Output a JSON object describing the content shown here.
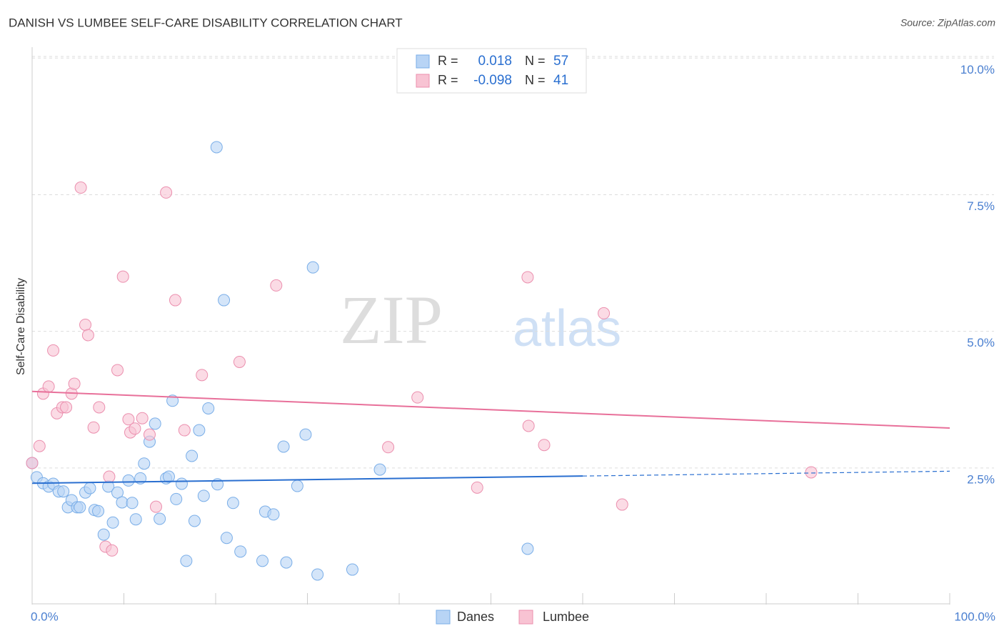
{
  "chart_data": {
    "type": "scatter",
    "title": "DANISH VS LUMBEE SELF-CARE DISABILITY CORRELATION CHART",
    "source": "Source: ZipAtlas.com",
    "y_label": "Self-Care Disability",
    "watermark": [
      "ZIP",
      "atlas"
    ],
    "xlim": [
      0,
      100
    ],
    "ylim": [
      0,
      10.2
    ],
    "xticks": [
      0,
      10,
      20,
      30,
      40,
      50,
      60,
      70,
      80,
      90,
      100
    ],
    "xtick_labels": [
      {
        "value": 0,
        "label": "0.0%"
      },
      {
        "value": 100,
        "label": "100.0%"
      }
    ],
    "yticks": [
      {
        "value": 2.5,
        "label": "2.5%"
      },
      {
        "value": 5,
        "label": "5.0%"
      },
      {
        "value": 7.5,
        "label": "7.5%"
      },
      {
        "value": 10,
        "label": "10.0%"
      }
    ],
    "grid": true,
    "legend_stats": [
      {
        "r_label": "R =",
        "r": "0.018",
        "n_label": "N =",
        "n": "57"
      },
      {
        "r_label": "R =",
        "r": "-0.098",
        "n_label": "N =",
        "n": "41"
      }
    ],
    "series": [
      {
        "name": "Danes",
        "color": "#7aaee8",
        "fill": "#b8d4f5",
        "line_color": "#2a6fd0",
        "trend": [
          2.22,
          2.44
        ],
        "trend_solid_to": 60,
        "x": [
          0,
          0.5,
          1.2,
          1.8,
          2.3,
          2.9,
          3.4,
          3.9,
          4.3,
          4.9,
          5.2,
          5.8,
          6.3,
          6.8,
          7.2,
          7.8,
          8.3,
          8.8,
          9.3,
          9.8,
          10.5,
          10.9,
          11.3,
          11.8,
          12.2,
          12.8,
          13.4,
          13.9,
          14.6,
          14.9,
          15.3,
          15.7,
          16.3,
          16.8,
          17.4,
          17.7,
          18.2,
          18.7,
          19.2,
          20.1,
          20.2,
          20.9,
          21.2,
          21.9,
          22.7,
          25.1,
          25.4,
          26.3,
          27.4,
          27.7,
          28.9,
          29.8,
          30.6,
          31.1,
          34.9,
          37.9,
          54.0
        ],
        "values": [
          2.59,
          2.33,
          2.22,
          2.16,
          2.21,
          2.07,
          2.07,
          1.78,
          1.91,
          1.78,
          1.78,
          2.05,
          2.13,
          1.73,
          1.71,
          1.28,
          2.16,
          1.5,
          2.05,
          1.87,
          2.27,
          1.86,
          1.56,
          2.31,
          2.58,
          2.98,
          3.31,
          1.57,
          2.31,
          2.34,
          3.73,
          1.93,
          2.21,
          0.8,
          2.72,
          1.53,
          3.19,
          1.99,
          3.59,
          8.37,
          2.2,
          5.57,
          1.22,
          1.86,
          0.97,
          0.8,
          1.7,
          1.65,
          2.89,
          0.77,
          2.17,
          3.11,
          6.17,
          0.55,
          0.64,
          2.47,
          1.02
        ]
      },
      {
        "name": "Lumbee",
        "color": "#eb8fae",
        "fill": "#f8c3d3",
        "line_color": "#e8709a",
        "trend": [
          3.9,
          3.23
        ],
        "trend_solid_to": 100,
        "x": [
          0,
          0.8,
          1.2,
          1.8,
          2.3,
          2.7,
          3.3,
          3.7,
          4.3,
          4.6,
          5.3,
          5.8,
          6.1,
          6.7,
          7.3,
          8.0,
          8.4,
          8.7,
          9.3,
          9.9,
          10.5,
          10.7,
          11.2,
          12.0,
          12.8,
          13.5,
          14.6,
          15.6,
          16.6,
          18.5,
          22.6,
          26.6,
          38.8,
          42.0,
          48.5,
          54.0,
          54.1,
          55.8,
          62.3,
          64.3,
          84.9
        ],
        "values": [
          2.59,
          2.9,
          3.86,
          3.99,
          4.65,
          3.5,
          3.61,
          3.61,
          3.86,
          4.04,
          7.63,
          5.12,
          4.93,
          3.24,
          3.61,
          1.06,
          2.34,
          0.99,
          4.29,
          6.0,
          3.39,
          3.15,
          3.22,
          3.41,
          3.11,
          1.79,
          7.54,
          5.57,
          3.19,
          4.2,
          4.44,
          5.84,
          2.88,
          3.79,
          2.14,
          5.99,
          3.27,
          2.92,
          5.33,
          1.83,
          2.42
        ]
      }
    ]
  }
}
